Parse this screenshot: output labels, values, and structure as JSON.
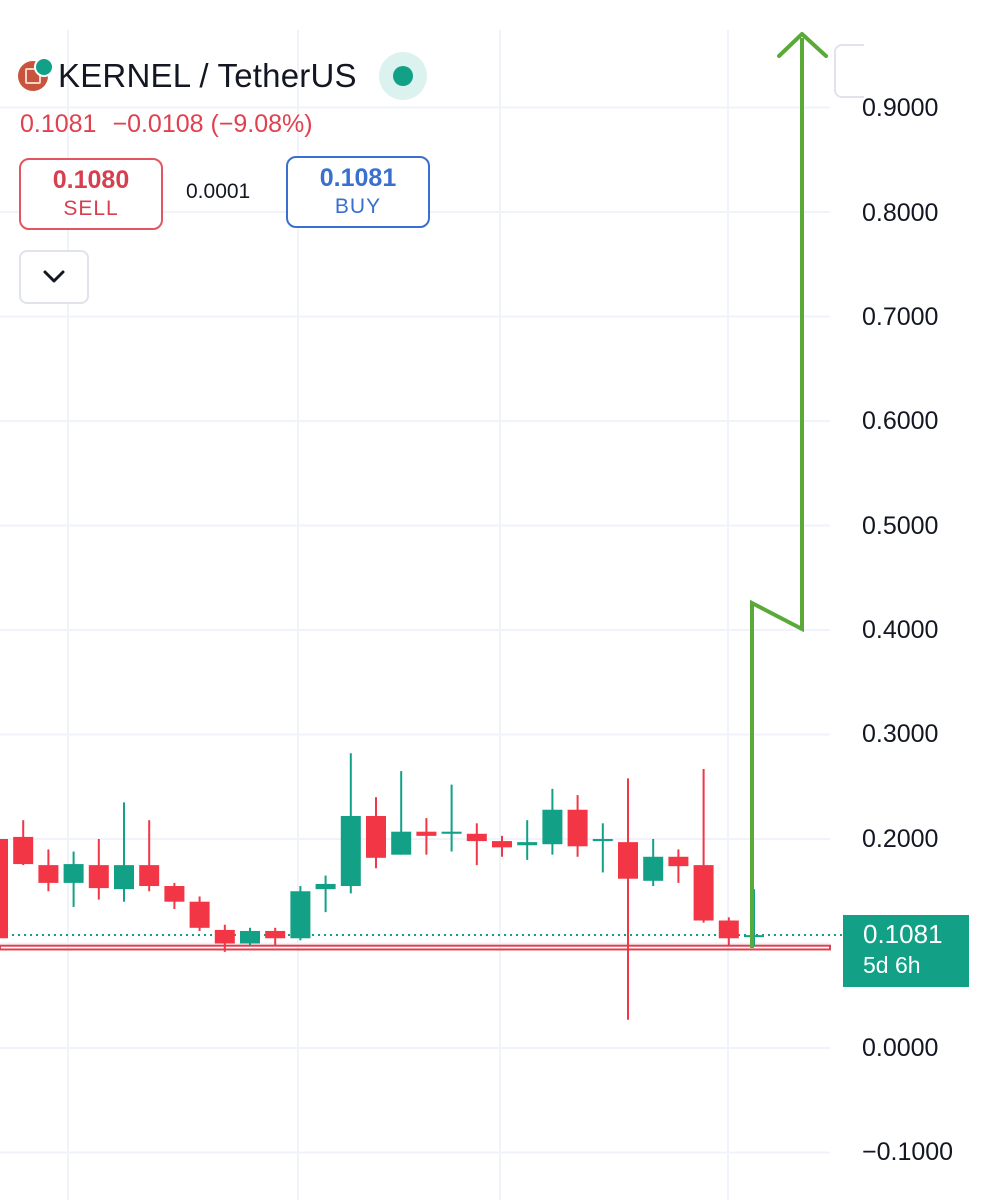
{
  "header": {
    "symbol": "KERNEL / TetherUS",
    "coin_icon": "kernel-coin-logo",
    "market_status_icon": "market-open-dot-icon",
    "last_price": "0.1081",
    "change": "−0.0108 (−9.08%)"
  },
  "trade": {
    "sell_price": "0.1080",
    "sell_label": "SELL",
    "spread": "0.0001",
    "buy_price": "0.1081",
    "buy_label": "BUY",
    "collapse_icon": "chevron-down-icon"
  },
  "price_label": {
    "value": "0.1081",
    "countdown": "5d 6h"
  },
  "colors": {
    "up": "#12a086",
    "down": "#f23645",
    "annotation_arrow": "#5aaa3a",
    "support_line": "#e0414f"
  },
  "chart_data": {
    "type": "candlestick",
    "y_axis_ticks": [
      "0.9000",
      "0.8000",
      "0.7000",
      "0.6000",
      "0.5000",
      "0.4000",
      "0.3000",
      "0.2000",
      "0.1081",
      "0.0000",
      "−0.1000"
    ],
    "ylim": [
      -0.1,
      0.95
    ],
    "last_price_line": 0.1081,
    "support_band": [
      0.0943,
      0.0979
    ],
    "candles": [
      {
        "o": 0.2,
        "h": 0.205,
        "l": 0.1,
        "c": 0.105
      },
      {
        "o": 0.202,
        "h": 0.218,
        "l": 0.175,
        "c": 0.176
      },
      {
        "o": 0.175,
        "h": 0.19,
        "l": 0.15,
        "c": 0.158
      },
      {
        "o": 0.158,
        "h": 0.188,
        "l": 0.135,
        "c": 0.176
      },
      {
        "o": 0.175,
        "h": 0.2,
        "l": 0.142,
        "c": 0.153
      },
      {
        "o": 0.152,
        "h": 0.235,
        "l": 0.14,
        "c": 0.175
      },
      {
        "o": 0.175,
        "h": 0.218,
        "l": 0.15,
        "c": 0.155
      },
      {
        "o": 0.155,
        "h": 0.158,
        "l": 0.133,
        "c": 0.14
      },
      {
        "o": 0.14,
        "h": 0.145,
        "l": 0.112,
        "c": 0.115
      },
      {
        "o": 0.113,
        "h": 0.118,
        "l": 0.092,
        "c": 0.1
      },
      {
        "o": 0.1,
        "h": 0.115,
        "l": 0.098,
        "c": 0.112
      },
      {
        "o": 0.112,
        "h": 0.115,
        "l": 0.098,
        "c": 0.105
      },
      {
        "o": 0.105,
        "h": 0.155,
        "l": 0.103,
        "c": 0.15
      },
      {
        "o": 0.152,
        "h": 0.165,
        "l": 0.13,
        "c": 0.157
      },
      {
        "o": 0.155,
        "h": 0.282,
        "l": 0.148,
        "c": 0.222
      },
      {
        "o": 0.222,
        "h": 0.24,
        "l": 0.172,
        "c": 0.182
      },
      {
        "o": 0.185,
        "h": 0.265,
        "l": 0.185,
        "c": 0.207
      },
      {
        "o": 0.207,
        "h": 0.22,
        "l": 0.185,
        "c": 0.203
      },
      {
        "o": 0.205,
        "h": 0.252,
        "l": 0.188,
        "c": 0.207
      },
      {
        "o": 0.205,
        "h": 0.215,
        "l": 0.175,
        "c": 0.198
      },
      {
        "o": 0.198,
        "h": 0.203,
        "l": 0.183,
        "c": 0.192
      },
      {
        "o": 0.194,
        "h": 0.218,
        "l": 0.18,
        "c": 0.197
      },
      {
        "o": 0.195,
        "h": 0.248,
        "l": 0.185,
        "c": 0.228
      },
      {
        "o": 0.228,
        "h": 0.242,
        "l": 0.183,
        "c": 0.193
      },
      {
        "o": 0.198,
        "h": 0.215,
        "l": 0.168,
        "c": 0.2
      },
      {
        "o": 0.197,
        "h": 0.258,
        "l": 0.027,
        "c": 0.162
      },
      {
        "o": 0.16,
        "h": 0.2,
        "l": 0.155,
        "c": 0.183
      },
      {
        "o": 0.183,
        "h": 0.19,
        "l": 0.158,
        "c": 0.174
      },
      {
        "o": 0.175,
        "h": 0.267,
        "l": 0.12,
        "c": 0.122
      },
      {
        "o": 0.122,
        "h": 0.125,
        "l": 0.098,
        "c": 0.105
      },
      {
        "o": 0.107,
        "h": 0.152,
        "l": 0.097,
        "c": 0.108
      }
    ]
  }
}
